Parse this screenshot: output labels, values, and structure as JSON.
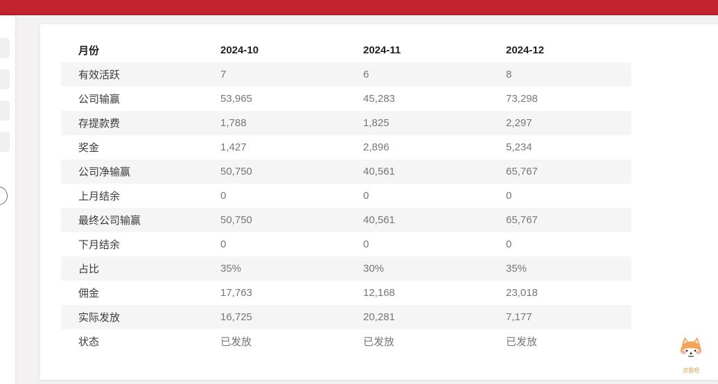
{
  "top_bar": {
    "color": "#c2232e"
  },
  "sidebar": {
    "skeleton_count": 4
  },
  "report": {
    "header": [
      "月份",
      "2024-10",
      "2024-11",
      "2024-12"
    ],
    "rows": [
      {
        "label": "有效活跃",
        "values": [
          "7",
          "6",
          "8"
        ]
      },
      {
        "label": "公司输赢",
        "values": [
          "53,965",
          "45,283",
          "73,298"
        ]
      },
      {
        "label": "存提款费",
        "values": [
          "1,788",
          "1,825",
          "2,297"
        ]
      },
      {
        "label": "奖金",
        "values": [
          "1,427",
          "2,896",
          "5,234"
        ]
      },
      {
        "label": "公司净输赢",
        "values": [
          "50,750",
          "40,561",
          "65,767"
        ]
      },
      {
        "label": "上月结余",
        "values": [
          "0",
          "0",
          "0"
        ]
      },
      {
        "label": "最终公司输赢",
        "values": [
          "50,750",
          "40,561",
          "65,767"
        ]
      },
      {
        "label": "下月结余",
        "values": [
          "0",
          "0",
          "0"
        ]
      },
      {
        "label": "占比",
        "values": [
          "35%",
          "30%",
          "35%"
        ]
      },
      {
        "label": "佣金",
        "values": [
          "17,763",
          "12,168",
          "23,018"
        ]
      },
      {
        "label": "实际发放",
        "values": [
          "16,725",
          "20,281",
          "7,177"
        ]
      },
      {
        "label": "状态",
        "values": [
          "已发放",
          "已发放",
          "已发放"
        ]
      }
    ],
    "stripe_color": "#f5f5f5"
  },
  "mascot": {
    "label": "点我吧"
  }
}
